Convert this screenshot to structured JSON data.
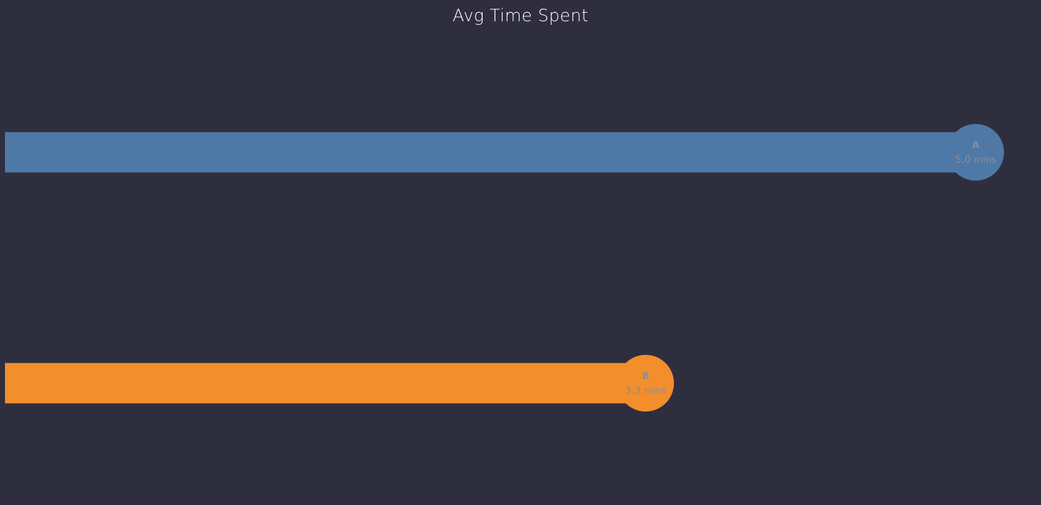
{
  "chart_data": {
    "type": "bar",
    "orientation": "horizontal",
    "title": "Avg Time Spent",
    "categories": [
      "A",
      "B"
    ],
    "values": [
      5.0,
      3.3
    ],
    "value_labels": [
      "5.0",
      "3.3"
    ],
    "unit": "mins",
    "colors": [
      "#4e79a7",
      "#f28e2b"
    ],
    "xlim": [
      0,
      5.3
    ],
    "grid": false,
    "legend": "none",
    "background": "#2e2e3e",
    "label_color": "#8a8c9c"
  }
}
